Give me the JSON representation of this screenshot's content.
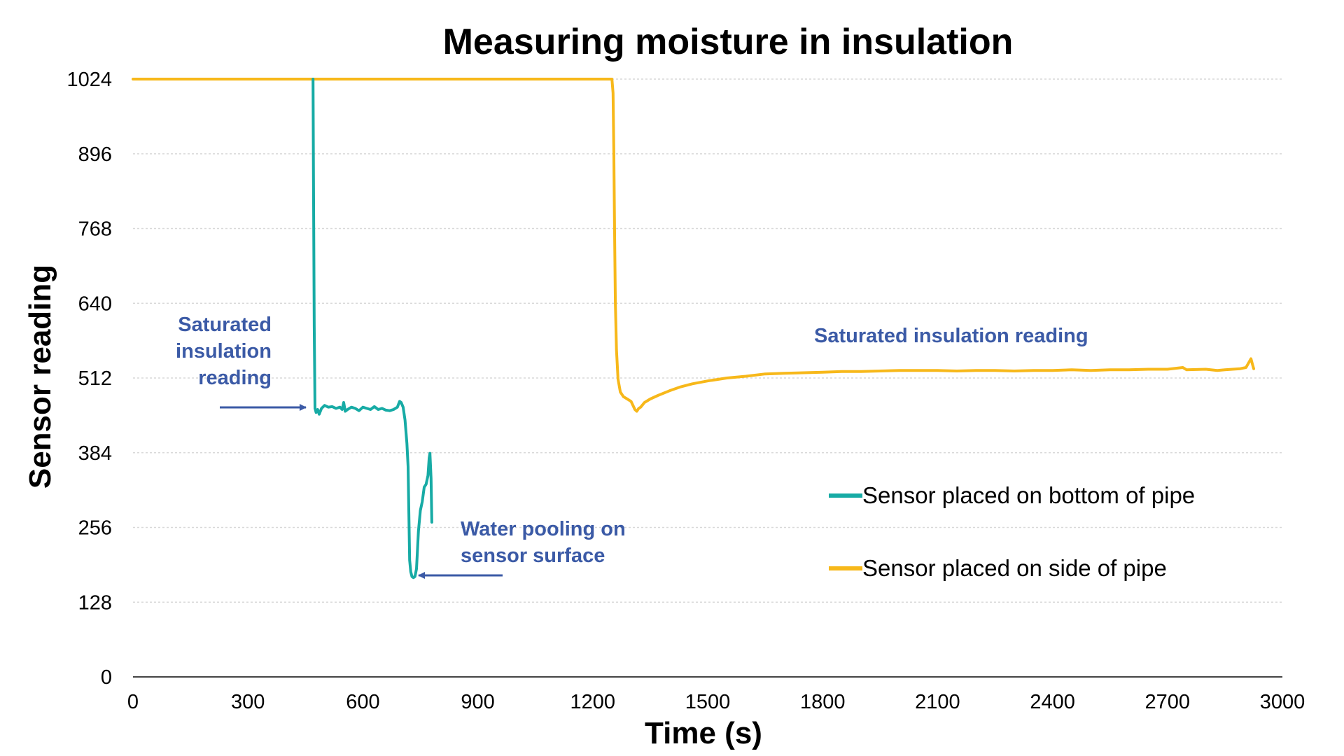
{
  "colors": {
    "teal": "#17aba5",
    "gold": "#f7b81a",
    "annotation": "#3b5aa6",
    "grid": "#d9d9d9",
    "axis": "#444444"
  },
  "chart_data": {
    "type": "line",
    "title": "Measuring moisture in insulation",
    "xlabel": "Time (s)",
    "ylabel": "Sensor reading",
    "xlim": [
      0,
      3000
    ],
    "ylim": [
      0,
      1024
    ],
    "grid": "horizontal dashed",
    "legend_position": "right",
    "x_ticks": [
      "0",
      "300",
      "600",
      "900",
      "1200",
      "1500",
      "1800",
      "2100",
      "2400",
      "2700",
      "3000"
    ],
    "y_ticks": [
      "0",
      "128",
      "256",
      "384",
      "512",
      "640",
      "768",
      "896",
      "1024"
    ],
    "series": [
      {
        "name": "Sensor placed on bottom of pipe",
        "color": "#17aba5",
        "points": [
          [
            470,
            1024
          ],
          [
            471,
            860
          ],
          [
            473,
            600
          ],
          [
            475,
            460
          ],
          [
            478,
            453
          ],
          [
            482,
            458
          ],
          [
            486,
            450
          ],
          [
            492,
            460
          ],
          [
            500,
            465
          ],
          [
            510,
            462
          ],
          [
            520,
            463
          ],
          [
            530,
            460
          ],
          [
            540,
            462
          ],
          [
            546,
            458
          ],
          [
            550,
            470
          ],
          [
            554,
            455
          ],
          [
            560,
            458
          ],
          [
            570,
            462
          ],
          [
            580,
            460
          ],
          [
            590,
            456
          ],
          [
            600,
            462
          ],
          [
            610,
            460
          ],
          [
            620,
            458
          ],
          [
            630,
            463
          ],
          [
            640,
            458
          ],
          [
            650,
            460
          ],
          [
            660,
            457
          ],
          [
            670,
            456
          ],
          [
            680,
            458
          ],
          [
            690,
            462
          ],
          [
            696,
            472
          ],
          [
            700,
            470
          ],
          [
            705,
            462
          ],
          [
            710,
            440
          ],
          [
            715,
            400
          ],
          [
            718,
            360
          ],
          [
            720,
            280
          ],
          [
            722,
            200
          ],
          [
            725,
            180
          ],
          [
            728,
            172
          ],
          [
            732,
            170
          ],
          [
            736,
            172
          ],
          [
            740,
            185
          ],
          [
            745,
            250
          ],
          [
            750,
            285
          ],
          [
            755,
            300
          ],
          [
            760,
            325
          ],
          [
            765,
            330
          ],
          [
            770,
            345
          ],
          [
            773,
            375
          ],
          [
            775,
            383
          ],
          [
            778,
            340
          ],
          [
            780,
            265
          ]
        ]
      },
      {
        "name": "Sensor placed on side of pipe",
        "color": "#f7b81a",
        "points": [
          [
            0,
            1024
          ],
          [
            1250,
            1024
          ],
          [
            1253,
            1000
          ],
          [
            1255,
            900
          ],
          [
            1257,
            760
          ],
          [
            1259,
            640
          ],
          [
            1262,
            560
          ],
          [
            1266,
            510
          ],
          [
            1272,
            488
          ],
          [
            1280,
            480
          ],
          [
            1290,
            476
          ],
          [
            1300,
            472
          ],
          [
            1305,
            465
          ],
          [
            1310,
            458
          ],
          [
            1315,
            455
          ],
          [
            1320,
            460
          ],
          [
            1325,
            462
          ],
          [
            1335,
            470
          ],
          [
            1350,
            476
          ],
          [
            1370,
            482
          ],
          [
            1400,
            490
          ],
          [
            1430,
            497
          ],
          [
            1460,
            502
          ],
          [
            1500,
            507
          ],
          [
            1550,
            512
          ],
          [
            1600,
            515
          ],
          [
            1650,
            519
          ],
          [
            1700,
            520
          ],
          [
            1750,
            521
          ],
          [
            1800,
            522
          ],
          [
            1850,
            523
          ],
          [
            1900,
            523
          ],
          [
            1950,
            524
          ],
          [
            2000,
            525
          ],
          [
            2050,
            525
          ],
          [
            2100,
            525
          ],
          [
            2150,
            524
          ],
          [
            2200,
            525
          ],
          [
            2250,
            525
          ],
          [
            2300,
            524
          ],
          [
            2350,
            525
          ],
          [
            2400,
            525
          ],
          [
            2450,
            526
          ],
          [
            2500,
            525
          ],
          [
            2550,
            526
          ],
          [
            2600,
            526
          ],
          [
            2650,
            527
          ],
          [
            2700,
            527
          ],
          [
            2740,
            530
          ],
          [
            2750,
            526
          ],
          [
            2800,
            527
          ],
          [
            2830,
            525
          ],
          [
            2850,
            526
          ],
          [
            2870,
            527
          ],
          [
            2890,
            528
          ],
          [
            2905,
            530
          ],
          [
            2912,
            538
          ],
          [
            2918,
            545
          ],
          [
            2922,
            535
          ],
          [
            2925,
            528
          ]
        ]
      }
    ],
    "annotations": [
      {
        "name": "annotation-saturated-bottom",
        "lines": [
          "Saturated",
          "insulation",
          "reading"
        ],
        "arrow": true
      },
      {
        "name": "annotation-water-pooling",
        "lines": [
          "Water pooling on",
          "sensor surface"
        ],
        "arrow": true
      },
      {
        "name": "annotation-saturated-side",
        "lines": [
          "Saturated insulation reading"
        ],
        "arrow": false
      }
    ]
  }
}
